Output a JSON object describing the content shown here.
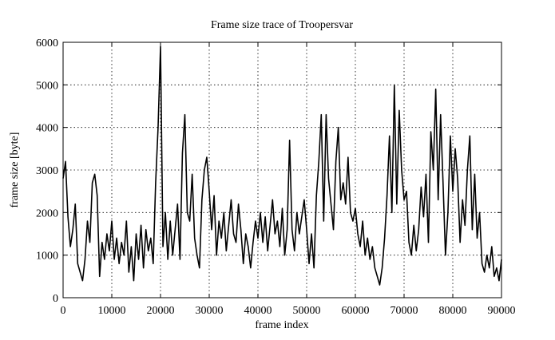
{
  "chart_data": {
    "type": "line",
    "title": "Frame size trace of Troopersvar",
    "x_label": "frame index",
    "y_label": "frame size [byte]",
    "xlim": [
      0,
      90000
    ],
    "xticks": [
      0,
      10000,
      20000,
      30000,
      40000,
      50000,
      60000,
      70000,
      80000,
      90000
    ],
    "ylim": [
      0,
      6000
    ],
    "yticks": [
      0,
      1000,
      2000,
      3000,
      4000,
      5000,
      6000
    ],
    "grid": true,
    "color": "#000000",
    "x": [
      0,
      500,
      1000,
      1500,
      2000,
      2500,
      3000,
      3500,
      4000,
      4500,
      5000,
      5500,
      6000,
      6500,
      7000,
      7500,
      8000,
      8500,
      9000,
      9500,
      10000,
      10500,
      11000,
      11500,
      12000,
      12500,
      13000,
      13500,
      14000,
      14500,
      15000,
      15500,
      16000,
      16500,
      17000,
      17500,
      18000,
      18500,
      19000,
      19500,
      20000,
      20500,
      21000,
      21500,
      22000,
      22500,
      23000,
      23500,
      24000,
      24500,
      25000,
      25500,
      26000,
      26500,
      27000,
      27500,
      28000,
      28500,
      29000,
      29500,
      30000,
      30500,
      31000,
      31500,
      32000,
      32500,
      33000,
      33500,
      34000,
      34500,
      35000,
      35500,
      36000,
      36500,
      37000,
      37500,
      38000,
      38500,
      39000,
      39500,
      40000,
      40500,
      41000,
      41500,
      42000,
      42500,
      43000,
      43500,
      44000,
      44500,
      45000,
      45500,
      46000,
      46500,
      47000,
      47500,
      48000,
      48500,
      49000,
      49500,
      50000,
      50500,
      51000,
      51500,
      52000,
      52500,
      53000,
      53500,
      54000,
      54500,
      55000,
      55500,
      56000,
      56500,
      57000,
      57500,
      58000,
      58500,
      59000,
      59500,
      60000,
      60500,
      61000,
      61500,
      62000,
      62500,
      63000,
      63500,
      64000,
      64500,
      65000,
      65500,
      66000,
      66500,
      67000,
      67500,
      68000,
      68500,
      69000,
      69500,
      70000,
      70500,
      71000,
      71500,
      72000,
      72500,
      73000,
      73500,
      74000,
      74500,
      75000,
      75500,
      76000,
      76500,
      77000,
      77500,
      78000,
      78500,
      79000,
      79500,
      80000,
      80500,
      81000,
      81500,
      82000,
      82500,
      83000,
      83500,
      84000,
      84500,
      85000,
      85500,
      86000,
      86500,
      87000,
      87500,
      88000,
      88500,
      89000,
      89500,
      90000
    ],
    "values": [
      2800,
      3200,
      1900,
      1200,
      1600,
      2200,
      800,
      600,
      400,
      900,
      1800,
      1300,
      2700,
      2900,
      2400,
      500,
      1300,
      900,
      1500,
      1100,
      1800,
      900,
      1400,
      800,
      1300,
      1000,
      1800,
      600,
      1200,
      400,
      1500,
      900,
      1700,
      700,
      1600,
      1100,
      1400,
      800,
      2700,
      4000,
      5900,
      1200,
      2000,
      900,
      1800,
      1000,
      1600,
      2200,
      900,
      3400,
      4300,
      2000,
      1800,
      2900,
      1400,
      1000,
      700,
      2300,
      3000,
      3300,
      2500,
      1600,
      2400,
      1000,
      1800,
      1400,
      2000,
      1100,
      1700,
      2300,
      1500,
      1300,
      2200,
      1600,
      800,
      1500,
      1200,
      700,
      1300,
      1800,
      1400,
      2000,
      1300,
      1900,
      1100,
      1700,
      2300,
      1500,
      1800,
      1200,
      2100,
      1000,
      1600,
      3700,
      1600,
      1100,
      2000,
      1500,
      1900,
      2300,
      1600,
      800,
      1500,
      700,
      2400,
      3200,
      4300,
      1800,
      4300,
      2800,
      2200,
      1600,
      3200,
      4000,
      2300,
      2700,
      2200,
      3300,
      2000,
      1800,
      2100,
      1500,
      1200,
      1800,
      1000,
      1400,
      900,
      1200,
      700,
      500,
      300,
      700,
      1400,
      2400,
      3800,
      2000,
      5000,
      2200,
      4400,
      3000,
      2300,
      2500,
      1300,
      1000,
      1700,
      1100,
      1600,
      2600,
      1900,
      2900,
      1300,
      3900,
      3000,
      4900,
      2300,
      4300,
      2700,
      1000,
      2000,
      3800,
      2500,
      3500,
      2800,
      1300,
      2300,
      1700,
      3000,
      3800,
      1600,
      2900,
      1400,
      2000,
      800,
      600,
      1000,
      700,
      1200,
      500,
      700,
      400,
      900
    ]
  }
}
